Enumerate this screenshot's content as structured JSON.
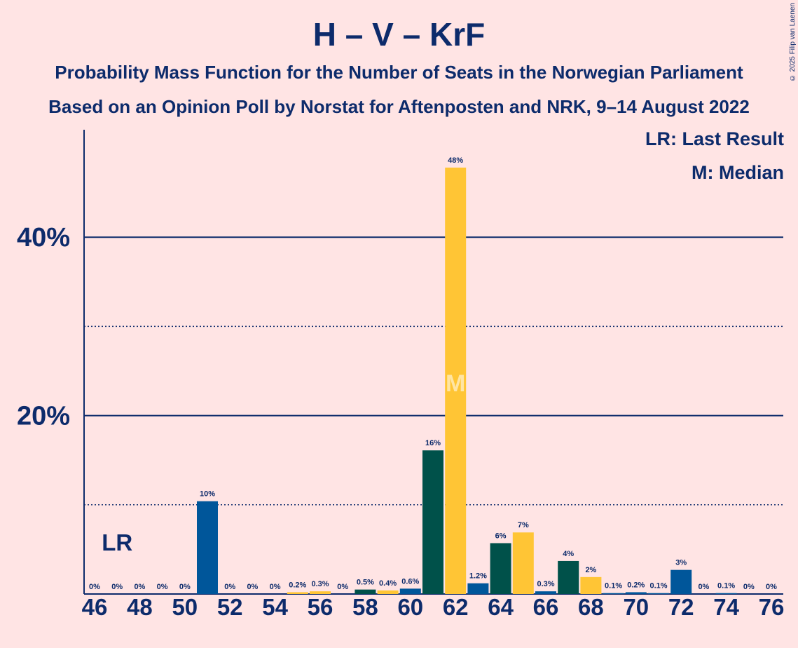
{
  "title": "H – V – KrF",
  "subtitle_1": "Probability Mass Function for the Number of Seats in the Norwegian Parliament",
  "subtitle_2": "Based on an Opinion Poll by Norstat for Aftenposten and NRK, 9–14 August 2022",
  "copyright": "© 2025 Filip van Laenen",
  "legend": {
    "last_result": "LR: Last Result",
    "median": "M: Median"
  },
  "markers": {
    "last_result_label": "LR",
    "last_result_seat": 47,
    "median_label": "M",
    "median_seat": 62
  },
  "colors": {
    "background": "#ffe4e4",
    "text": "#0d2b6b",
    "blue": "#00569a",
    "green": "#00514a",
    "yellow": "#ffc535"
  },
  "chart_data": {
    "type": "bar",
    "xlabel": "",
    "ylabel": "",
    "ylim": [
      0,
      52
    ],
    "major_ticks": [
      20,
      40
    ],
    "minor_ticks": [
      10,
      30
    ],
    "y_tick_labels": [
      "20%",
      "40%"
    ],
    "x_tick_labels": [
      "46",
      "48",
      "50",
      "52",
      "54",
      "56",
      "58",
      "60",
      "62",
      "64",
      "66",
      "68",
      "70",
      "72",
      "74",
      "76"
    ],
    "x_tick_values": [
      46,
      48,
      50,
      52,
      54,
      56,
      58,
      60,
      62,
      64,
      66,
      68,
      70,
      72,
      74,
      76
    ],
    "seats": [
      46,
      47,
      48,
      49,
      50,
      51,
      52,
      53,
      54,
      55,
      56,
      57,
      58,
      59,
      60,
      61,
      62,
      63,
      64,
      65,
      66,
      67,
      68,
      69,
      70,
      71,
      72,
      73,
      74,
      75,
      76
    ],
    "values": [
      0,
      0,
      0,
      0,
      0,
      10.4,
      0,
      0,
      0,
      0.2,
      0.3,
      0,
      0.5,
      0.4,
      0.6,
      16.1,
      47.8,
      1.2,
      5.7,
      6.9,
      0.3,
      3.7,
      1.9,
      0.1,
      0.2,
      0.1,
      2.7,
      0,
      0.1,
      0,
      0
    ],
    "labels": [
      "0%",
      "0%",
      "0%",
      "0%",
      "0%",
      "10%",
      "0%",
      "0%",
      "0%",
      "0.2%",
      "0.3%",
      "0%",
      "0.5%",
      "0.4%",
      "0.6%",
      "16%",
      "48%",
      "1.2%",
      "6%",
      "7%",
      "0.3%",
      "4%",
      "2%",
      "0.1%",
      "0.2%",
      "0.1%",
      "3%",
      "0%",
      "0.1%",
      "0%",
      "0%"
    ],
    "bar_colors": [
      "blue",
      "blue",
      "blue",
      "blue",
      "blue",
      "blue",
      "blue",
      "blue",
      "blue",
      "yellow",
      "yellow",
      "blue",
      "green",
      "yellow",
      "blue",
      "green",
      "yellow",
      "blue",
      "green",
      "yellow",
      "blue",
      "green",
      "yellow",
      "blue",
      "blue",
      "blue",
      "blue",
      "blue",
      "blue",
      "blue",
      "blue"
    ]
  }
}
